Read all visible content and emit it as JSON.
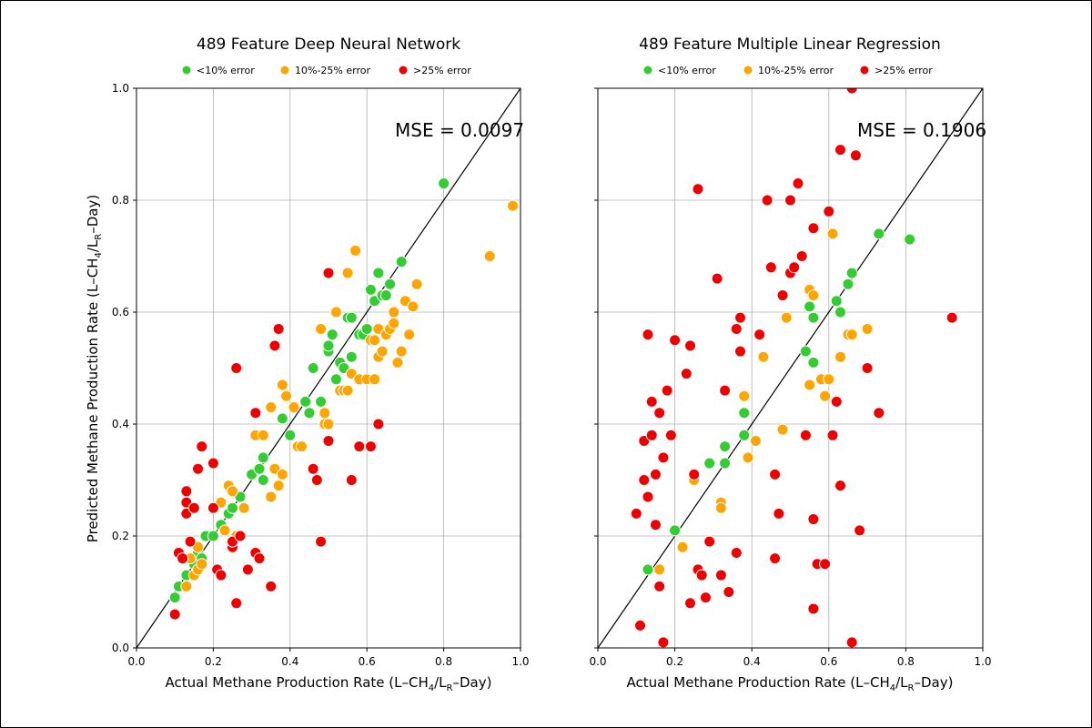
{
  "colors": {
    "low": "#33cc33",
    "mid": "#ffa500",
    "high": "#ee0000"
  },
  "legend_labels": [
    "<10% error",
    "10%-25% error",
    ">25% error"
  ],
  "chart_data": [
    {
      "type": "scatter",
      "title": "489 Feature Deep Neural Network",
      "annotation": "MSE = 0.0097",
      "xlabel_parts": [
        "Actual Methane Production Rate (L–CH",
        "4",
        "/L",
        "R",
        "–Day)"
      ],
      "ylabel_parts": [
        "Predicted Methane Production Rate (L–CH",
        "4",
        "/L",
        "R",
        "–Day)"
      ],
      "show_ylabel": true,
      "show_ytick_labels": true,
      "xlim": [
        0.0,
        1.0
      ],
      "ylim": [
        0.0,
        1.0
      ],
      "xticks": [
        "0.0",
        "0.2",
        "0.4",
        "0.6",
        "0.8",
        "1.0"
      ],
      "yticks": [
        "0.0",
        "0.2",
        "0.4",
        "0.6",
        "0.8",
        "1.0"
      ],
      "grid": true,
      "legend_position": "top-center",
      "series": [
        {
          "name": "<10% error",
          "color_key": "low",
          "x": [
            0.1,
            0.11,
            0.13,
            0.15,
            0.16,
            0.17,
            0.18,
            0.2,
            0.22,
            0.24,
            0.25,
            0.27,
            0.3,
            0.32,
            0.33,
            0.33,
            0.38,
            0.4,
            0.41,
            0.44,
            0.45,
            0.46,
            0.48,
            0.5,
            0.5,
            0.51,
            0.52,
            0.53,
            0.54,
            0.55,
            0.56,
            0.56,
            0.58,
            0.59,
            0.6,
            0.61,
            0.62,
            0.63,
            0.64,
            0.65,
            0.66,
            0.69,
            0.8
          ],
          "y": [
            0.09,
            0.11,
            0.13,
            0.15,
            0.17,
            0.16,
            0.2,
            0.2,
            0.22,
            0.24,
            0.25,
            0.27,
            0.31,
            0.32,
            0.3,
            0.34,
            0.41,
            0.38,
            0.43,
            0.44,
            0.42,
            0.5,
            0.44,
            0.53,
            0.54,
            0.56,
            0.48,
            0.51,
            0.5,
            0.59,
            0.52,
            0.59,
            0.56,
            0.56,
            0.57,
            0.64,
            0.62,
            0.67,
            0.63,
            0.63,
            0.65,
            0.69,
            0.83
          ]
        },
        {
          "name": "10%-25% error",
          "color_key": "mid",
          "x": [
            0.13,
            0.14,
            0.15,
            0.16,
            0.16,
            0.17,
            0.22,
            0.23,
            0.24,
            0.25,
            0.26,
            0.28,
            0.31,
            0.33,
            0.35,
            0.35,
            0.36,
            0.37,
            0.38,
            0.39,
            0.38,
            0.41,
            0.42,
            0.43,
            0.48,
            0.49,
            0.49,
            0.5,
            0.52,
            0.53,
            0.54,
            0.55,
            0.55,
            0.56,
            0.57,
            0.58,
            0.6,
            0.61,
            0.62,
            0.62,
            0.63,
            0.63,
            0.64,
            0.65,
            0.66,
            0.67,
            0.67,
            0.68,
            0.69,
            0.7,
            0.71,
            0.72,
            0.73,
            0.92,
            0.98
          ],
          "y": [
            0.11,
            0.16,
            0.13,
            0.18,
            0.14,
            0.15,
            0.26,
            0.21,
            0.29,
            0.28,
            0.2,
            0.25,
            0.38,
            0.38,
            0.27,
            0.43,
            0.32,
            0.29,
            0.47,
            0.45,
            0.31,
            0.43,
            0.36,
            0.36,
            0.57,
            0.42,
            0.4,
            0.4,
            0.6,
            0.46,
            0.46,
            0.46,
            0.67,
            0.49,
            0.71,
            0.48,
            0.48,
            0.55,
            0.48,
            0.55,
            0.57,
            0.52,
            0.53,
            0.56,
            0.57,
            0.6,
            0.58,
            0.51,
            0.53,
            0.62,
            0.56,
            0.61,
            0.65,
            0.7,
            0.79
          ]
        },
        {
          "name": ">25% error",
          "color_key": "high",
          "x": [
            0.1,
            0.11,
            0.12,
            0.13,
            0.13,
            0.13,
            0.14,
            0.15,
            0.16,
            0.17,
            0.2,
            0.2,
            0.21,
            0.22,
            0.25,
            0.25,
            0.26,
            0.26,
            0.27,
            0.29,
            0.31,
            0.31,
            0.32,
            0.35,
            0.36,
            0.37,
            0.46,
            0.47,
            0.48,
            0.5,
            0.5,
            0.56,
            0.58,
            0.61,
            0.63
          ],
          "y": [
            0.06,
            0.17,
            0.16,
            0.26,
            0.24,
            0.28,
            0.19,
            0.25,
            0.32,
            0.36,
            0.33,
            0.25,
            0.14,
            0.13,
            0.18,
            0.19,
            0.5,
            0.08,
            0.2,
            0.14,
            0.42,
            0.17,
            0.16,
            0.11,
            0.54,
            0.57,
            0.32,
            0.3,
            0.19,
            0.67,
            0.37,
            0.3,
            0.36,
            0.36,
            0.4
          ]
        }
      ]
    },
    {
      "type": "scatter",
      "title": "489 Feature Multiple Linear Regression",
      "annotation": "MSE = 0.1906",
      "xlabel_parts": [
        "Actual Methane Production Rate (L–CH",
        "4",
        "/L",
        "R",
        "–Day)"
      ],
      "ylabel_parts": [
        "",
        "",
        "",
        "",
        ""
      ],
      "show_ylabel": false,
      "show_ytick_labels": false,
      "xlim": [
        0.0,
        1.0
      ],
      "ylim": [
        0.0,
        1.0
      ],
      "xticks": [
        "0.0",
        "0.2",
        "0.4",
        "0.6",
        "0.8",
        "1.0"
      ],
      "yticks": [
        "",
        "",
        "",
        "",
        "",
        ""
      ],
      "grid": true,
      "legend_position": "top-center",
      "series": [
        {
          "name": "<10% error",
          "color_key": "low",
          "x": [
            0.13,
            0.2,
            0.29,
            0.33,
            0.33,
            0.38,
            0.38,
            0.54,
            0.55,
            0.56,
            0.56,
            0.62,
            0.63,
            0.65,
            0.66,
            0.73,
            0.81
          ],
          "y": [
            0.14,
            0.21,
            0.33,
            0.33,
            0.36,
            0.42,
            0.38,
            0.53,
            0.61,
            0.51,
            0.59,
            0.62,
            0.6,
            0.65,
            0.67,
            0.74,
            0.73
          ],
          "note": ""
        },
        {
          "name": "10%-25% error",
          "color_key": "mid",
          "x": [
            0.16,
            0.22,
            0.25,
            0.32,
            0.32,
            0.38,
            0.39,
            0.41,
            0.43,
            0.48,
            0.49,
            0.55,
            0.55,
            0.56,
            0.58,
            0.59,
            0.6,
            0.61,
            0.63,
            0.65,
            0.66,
            0.7
          ],
          "y": [
            0.14,
            0.18,
            0.3,
            0.26,
            0.25,
            0.45,
            0.34,
            0.37,
            0.52,
            0.39,
            0.59,
            0.64,
            0.47,
            0.63,
            0.48,
            0.45,
            0.48,
            0.74,
            0.52,
            0.56,
            0.56,
            0.57
          ]
        },
        {
          "name": ">25% error",
          "color_key": "high",
          "x": [
            0.11,
            0.1,
            0.12,
            0.12,
            0.13,
            0.13,
            0.14,
            0.14,
            0.15,
            0.15,
            0.16,
            0.16,
            0.17,
            0.17,
            0.18,
            0.19,
            0.2,
            0.23,
            0.24,
            0.24,
            0.25,
            0.26,
            0.26,
            0.27,
            0.28,
            0.29,
            0.31,
            0.32,
            0.33,
            0.34,
            0.36,
            0.36,
            0.37,
            0.37,
            0.42,
            0.44,
            0.45,
            0.46,
            0.46,
            0.47,
            0.48,
            0.5,
            0.5,
            0.51,
            0.52,
            0.53,
            0.54,
            0.56,
            0.56,
            0.56,
            0.57,
            0.59,
            0.6,
            0.61,
            0.62,
            0.63,
            0.63,
            0.66,
            0.66,
            0.67,
            0.68,
            0.7,
            0.73,
            0.92
          ],
          "y": [
            0.04,
            0.24,
            0.3,
            0.37,
            0.27,
            0.56,
            0.44,
            0.38,
            0.22,
            0.31,
            0.11,
            0.42,
            0.34,
            0.01,
            0.46,
            0.38,
            0.55,
            0.49,
            0.54,
            0.08,
            0.31,
            0.14,
            0.82,
            0.13,
            0.09,
            0.19,
            0.66,
            0.13,
            0.46,
            0.1,
            0.57,
            0.17,
            0.53,
            0.59,
            0.56,
            0.8,
            0.68,
            0.31,
            0.16,
            0.24,
            0.63,
            0.8,
            0.67,
            0.68,
            0.83,
            0.7,
            0.38,
            0.75,
            0.23,
            0.07,
            0.15,
            0.15,
            0.78,
            0.38,
            0.44,
            0.89,
            0.29,
            1.0,
            0.01,
            0.88,
            0.21,
            0.5,
            0.42,
            0.59
          ]
        }
      ]
    }
  ]
}
